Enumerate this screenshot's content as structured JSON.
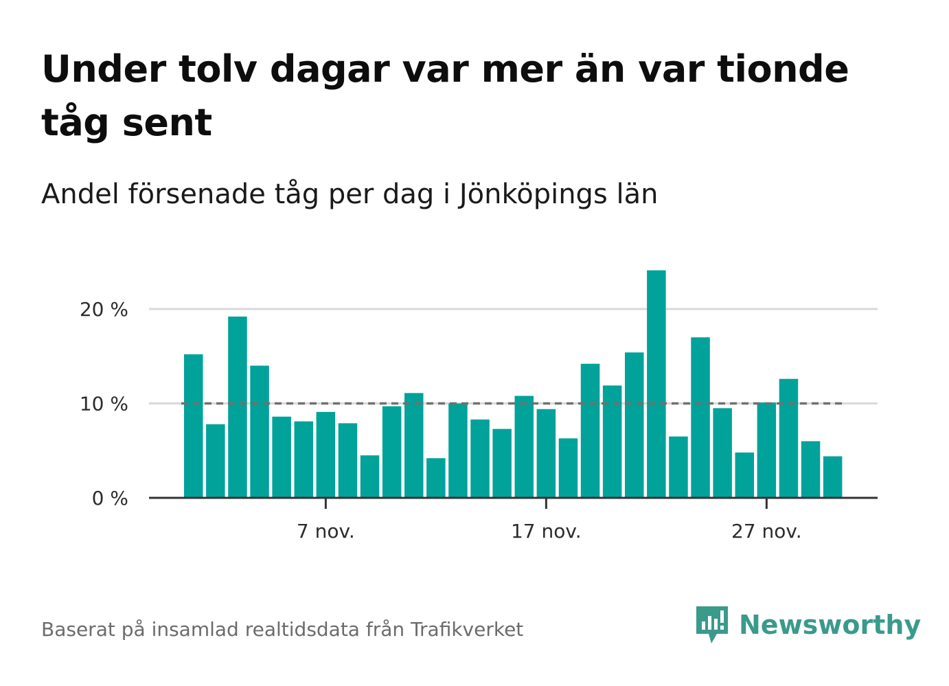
{
  "header": {
    "title": "Under tolv dagar var mer än var tionde tåg sent",
    "subtitle": "Andel försenade tåg per dag i Jönköpings län"
  },
  "footer": {
    "source": "Baserat på insamlad realtidsdata från Trafikverket",
    "brand": "Newsworthy"
  },
  "colors": {
    "bar": "#00a29a",
    "reference_line": "#707070",
    "grid": "#d9d9d9",
    "axis": "#333333",
    "brand": "#3a9a8b"
  },
  "chart_data": {
    "type": "bar",
    "x": [
      "1 nov.",
      "2 nov.",
      "3 nov.",
      "4 nov.",
      "5 nov.",
      "6 nov.",
      "7 nov.",
      "8 nov.",
      "9 nov.",
      "10 nov.",
      "11 nov.",
      "12 nov.",
      "13 nov.",
      "14 nov.",
      "15 nov.",
      "16 nov.",
      "17 nov.",
      "18 nov.",
      "19 nov.",
      "20 nov.",
      "21 nov.",
      "22 nov.",
      "23 nov.",
      "24 nov.",
      "25 nov.",
      "26 nov.",
      "27 nov.",
      "28 nov.",
      "29 nov.",
      "30 nov."
    ],
    "values": [
      15.2,
      7.8,
      19.2,
      14.0,
      8.6,
      8.1,
      9.1,
      7.9,
      4.5,
      9.7,
      11.1,
      4.2,
      10.0,
      8.3,
      7.3,
      10.8,
      9.4,
      6.3,
      14.2,
      11.9,
      15.4,
      24.1,
      6.5,
      17.0,
      9.5,
      4.8,
      10.1,
      12.6,
      6.0,
      4.4
    ],
    "ylim": [
      0,
      25
    ],
    "yticks": [
      0,
      10,
      20
    ],
    "ytick_labels": [
      "0 %",
      "10 %",
      "20 %"
    ],
    "xticks": [
      "7 nov.",
      "17 nov.",
      "27 nov."
    ],
    "reference_line": 10,
    "grid": true
  }
}
